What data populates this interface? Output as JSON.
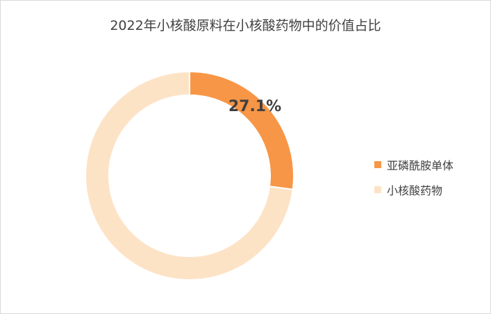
{
  "chart_data": {
    "type": "pie",
    "title": "2022年小核酸原料在小核酸药物中的价值占比",
    "categories": [
      "亚磷酰胺单体",
      "小核酸药物"
    ],
    "values": [
      27.1,
      72.9
    ],
    "colors": [
      "#F79646",
      "#FDE3C6"
    ],
    "data_labels": [
      "27.1%"
    ],
    "legend_position": "right"
  }
}
